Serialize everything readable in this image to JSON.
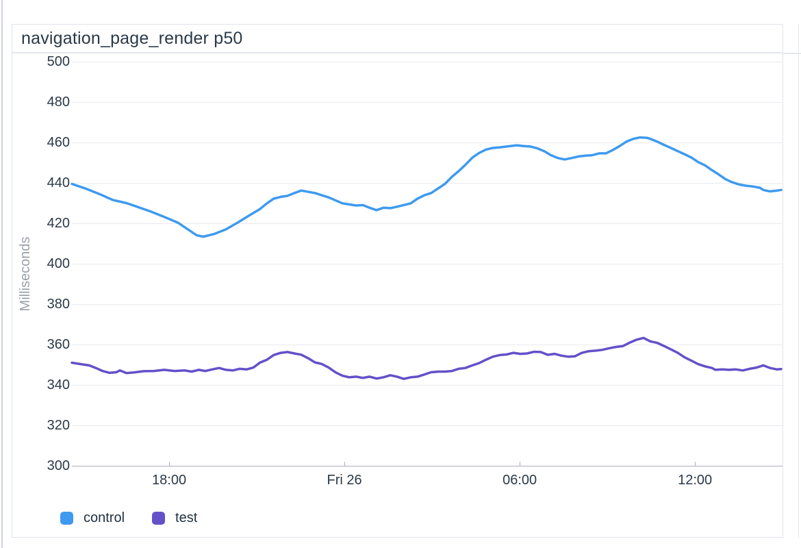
{
  "panel": {
    "title": "navigation_page_render p50"
  },
  "legend": {
    "items": [
      {
        "label": "control",
        "color": "#3d9af0"
      },
      {
        "label": "test",
        "color": "#6450c9"
      }
    ]
  },
  "chart_data": {
    "type": "line",
    "title": "navigation_page_render p50",
    "xlabel": "",
    "ylabel": "Milliseconds",
    "ylim": [
      300,
      500
    ],
    "y_ticks": [
      300,
      320,
      340,
      360,
      380,
      400,
      420,
      440,
      460,
      480,
      500
    ],
    "grid": true,
    "legend_position": "bottom-left",
    "x_axis": {
      "unit": "hours-from-window-start",
      "window_hours": [
        0,
        24.28
      ],
      "ticks": [
        {
          "h": 3.33,
          "label": "18:00"
        },
        {
          "h": 9.33,
          "label": "Fri 26"
        },
        {
          "h": 15.33,
          "label": "06:00"
        },
        {
          "h": 21.33,
          "label": "12:00"
        }
      ]
    },
    "series": [
      {
        "name": "control",
        "color": "#3d9af0",
        "points": [
          [
            0,
            439.5
          ],
          [
            0.47,
            437.2
          ],
          [
            0.94,
            434.5
          ],
          [
            1.41,
            431.5
          ],
          [
            1.87,
            430
          ],
          [
            2.23,
            428.2
          ],
          [
            2.69,
            425.9
          ],
          [
            3.16,
            423.2
          ],
          [
            3.63,
            420.3
          ],
          [
            4.03,
            416.4
          ],
          [
            4.27,
            414.1
          ],
          [
            4.5,
            413.4
          ],
          [
            4.87,
            414.7
          ],
          [
            5.27,
            417
          ],
          [
            5.67,
            420.3
          ],
          [
            6.05,
            423.7
          ],
          [
            6.44,
            427.1
          ],
          [
            6.68,
            429.9
          ],
          [
            6.91,
            432.2
          ],
          [
            7.15,
            433.1
          ],
          [
            7.38,
            433.6
          ],
          [
            7.62,
            435
          ],
          [
            7.85,
            436.2
          ],
          [
            8.32,
            435
          ],
          [
            8.79,
            432.8
          ],
          [
            9.26,
            429.9
          ],
          [
            9.73,
            428.8
          ],
          [
            9.96,
            429
          ],
          [
            10.19,
            427.7
          ],
          [
            10.43,
            426.5
          ],
          [
            10.66,
            427.7
          ],
          [
            10.9,
            427.5
          ],
          [
            11.13,
            428.2
          ],
          [
            11.36,
            429
          ],
          [
            11.6,
            429.9
          ],
          [
            11.83,
            432.2
          ],
          [
            12.07,
            433.9
          ],
          [
            12.3,
            435
          ],
          [
            12.54,
            437.3
          ],
          [
            12.77,
            439.5
          ],
          [
            13.01,
            443
          ],
          [
            13.24,
            445.8
          ],
          [
            13.47,
            448.9
          ],
          [
            13.71,
            452.5
          ],
          [
            13.94,
            454.8
          ],
          [
            14.18,
            456.5
          ],
          [
            14.41,
            457.3
          ],
          [
            14.65,
            457.6
          ],
          [
            14.88,
            458
          ],
          [
            15.23,
            458.6
          ],
          [
            15.47,
            458.2
          ],
          [
            15.7,
            458
          ],
          [
            15.94,
            457.1
          ],
          [
            16.17,
            455.7
          ],
          [
            16.4,
            453.7
          ],
          [
            16.64,
            452.3
          ],
          [
            16.87,
            451.6
          ],
          [
            17.11,
            452.3
          ],
          [
            17.34,
            453.1
          ],
          [
            17.58,
            453.5
          ],
          [
            17.81,
            453.7
          ],
          [
            18.05,
            454.6
          ],
          [
            18.28,
            454.6
          ],
          [
            18.51,
            456.2
          ],
          [
            18.75,
            458.2
          ],
          [
            18.98,
            460.4
          ],
          [
            19.22,
            461.8
          ],
          [
            19.45,
            462.5
          ],
          [
            19.69,
            462.3
          ],
          [
            19.8,
            461.8
          ],
          [
            20.04,
            460.4
          ],
          [
            20.27,
            458.8
          ],
          [
            20.51,
            457.3
          ],
          [
            20.74,
            455.7
          ],
          [
            20.97,
            454.2
          ],
          [
            21.21,
            452.5
          ],
          [
            21.44,
            450.3
          ],
          [
            21.68,
            448.6
          ],
          [
            21.91,
            446.3
          ],
          [
            22.15,
            444.1
          ],
          [
            22.38,
            441.8
          ],
          [
            22.61,
            440.3
          ],
          [
            22.85,
            439.2
          ],
          [
            23.08,
            438.6
          ],
          [
            23.32,
            438.2
          ],
          [
            23.55,
            437.6
          ],
          [
            23.67,
            436.5
          ],
          [
            23.9,
            435.8
          ],
          [
            24.14,
            436.2
          ],
          [
            24.28,
            436.5
          ]
        ]
      },
      {
        "name": "test",
        "color": "#6450c9",
        "points": [
          [
            0,
            351
          ],
          [
            0.35,
            350.2
          ],
          [
            0.59,
            349.7
          ],
          [
            0.82,
            348.4
          ],
          [
            1.05,
            346.9
          ],
          [
            1.29,
            346
          ],
          [
            1.52,
            346.3
          ],
          [
            1.64,
            347.2
          ],
          [
            1.87,
            345.9
          ],
          [
            2.11,
            346.2
          ],
          [
            2.46,
            346.8
          ],
          [
            2.81,
            346.9
          ],
          [
            3.16,
            347.5
          ],
          [
            3.52,
            346.9
          ],
          [
            3.87,
            347.2
          ],
          [
            4.1,
            346.6
          ],
          [
            4.34,
            347.5
          ],
          [
            4.57,
            346.9
          ],
          [
            4.8,
            347.7
          ],
          [
            5.04,
            348.4
          ],
          [
            5.27,
            347.5
          ],
          [
            5.51,
            347.2
          ],
          [
            5.74,
            348
          ],
          [
            5.98,
            347.7
          ],
          [
            6.21,
            348.6
          ],
          [
            6.44,
            351.1
          ],
          [
            6.68,
            352.5
          ],
          [
            6.91,
            354.8
          ],
          [
            7.15,
            355.9
          ],
          [
            7.38,
            356.3
          ],
          [
            7.62,
            355.6
          ],
          [
            7.85,
            355
          ],
          [
            8.08,
            353.3
          ],
          [
            8.32,
            351.2
          ],
          [
            8.55,
            350.4
          ],
          [
            8.79,
            348.6
          ],
          [
            9.02,
            346.3
          ],
          [
            9.26,
            344.6
          ],
          [
            9.49,
            343.8
          ],
          [
            9.73,
            344.1
          ],
          [
            9.96,
            343.5
          ],
          [
            10.19,
            344.1
          ],
          [
            10.43,
            343.2
          ],
          [
            10.66,
            343.8
          ],
          [
            10.9,
            344.8
          ],
          [
            11.13,
            344.1
          ],
          [
            11.36,
            343
          ],
          [
            11.6,
            343.8
          ],
          [
            11.83,
            344.1
          ],
          [
            12.07,
            345.2
          ],
          [
            12.3,
            346.3
          ],
          [
            12.54,
            346.6
          ],
          [
            12.77,
            346.6
          ],
          [
            13.01,
            346.9
          ],
          [
            13.24,
            348
          ],
          [
            13.47,
            348.4
          ],
          [
            13.71,
            349.7
          ],
          [
            13.94,
            350.8
          ],
          [
            14.18,
            352.5
          ],
          [
            14.41,
            354
          ],
          [
            14.65,
            354.8
          ],
          [
            14.88,
            355.1
          ],
          [
            15.12,
            355.9
          ],
          [
            15.35,
            355.4
          ],
          [
            15.58,
            355.6
          ],
          [
            15.82,
            356.4
          ],
          [
            16.05,
            356.3
          ],
          [
            16.29,
            354.9
          ],
          [
            16.52,
            355.4
          ],
          [
            16.76,
            354.5
          ],
          [
            16.99,
            354
          ],
          [
            17.22,
            354.2
          ],
          [
            17.46,
            355.9
          ],
          [
            17.69,
            356.7
          ],
          [
            17.93,
            357
          ],
          [
            18.16,
            357.4
          ],
          [
            18.4,
            358.2
          ],
          [
            18.63,
            358.8
          ],
          [
            18.87,
            359.3
          ],
          [
            19.1,
            361
          ],
          [
            19.33,
            362.4
          ],
          [
            19.57,
            363.3
          ],
          [
            19.8,
            361.6
          ],
          [
            20.04,
            360.8
          ],
          [
            20.27,
            359.3
          ],
          [
            20.51,
            357.6
          ],
          [
            20.74,
            355.9
          ],
          [
            20.97,
            353.7
          ],
          [
            21.21,
            352
          ],
          [
            21.44,
            350.3
          ],
          [
            21.68,
            349.2
          ],
          [
            21.91,
            348.4
          ],
          [
            22.03,
            347.5
          ],
          [
            22.26,
            347.7
          ],
          [
            22.5,
            347.5
          ],
          [
            22.73,
            347.7
          ],
          [
            22.97,
            347.2
          ],
          [
            23.2,
            348
          ],
          [
            23.44,
            348.6
          ],
          [
            23.67,
            349.7
          ],
          [
            23.9,
            348.4
          ],
          [
            24.14,
            347.7
          ],
          [
            24.28,
            347.9
          ]
        ]
      }
    ]
  },
  "colors": {
    "control": "#3d9af0",
    "test": "#6450c9",
    "gridline": "#e9eaef",
    "axis": "#a9aeb8",
    "panel_border": "#e1e4ec",
    "tick_text": "#2b3947",
    "axis_title_text": "#9aa0a8"
  }
}
